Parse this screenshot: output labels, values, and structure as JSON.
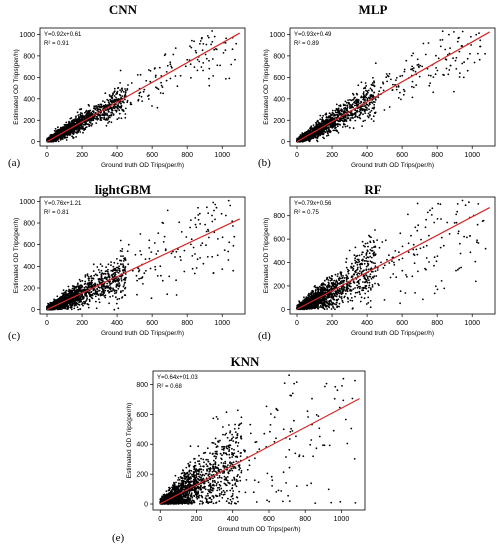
{
  "figure": {
    "panels": [
      {
        "id": "a",
        "label": "(a)",
        "title": "CNN",
        "equation": "Y=0.92x+0.61",
        "r2": "R² = 0.91",
        "xlabel": "Ground truth OD Trips(per/h)",
        "ylabel": "Estimated OD Trips(per/h)"
      },
      {
        "id": "b",
        "label": "(b)",
        "title": "MLP",
        "equation": "Y=0.93x+0.49",
        "r2": "R² = 0.89",
        "xlabel": "Ground truth OD Trips(per/h)",
        "ylabel": "Estimated OD Trips(per/h)"
      },
      {
        "id": "c",
        "label": "(c)",
        "title": "lightGBM",
        "equation": "Y=0.76x+1.21",
        "r2": "R² = 0.81",
        "xlabel": "Ground truth OD Trips(per/h)",
        "ylabel": "Estimated OD Trips(per/h)"
      },
      {
        "id": "d",
        "label": "(d)",
        "title": "RF",
        "equation": "Y=0.79x+0.56",
        "r2": "R² = 0.75",
        "xlabel": "Ground truth OD Trips(per/h)",
        "ylabel": "Estimated OD Trips(per/h)"
      },
      {
        "id": "e",
        "label": "(e)",
        "title": "KNN",
        "equation": "Y=0.64x+01.03",
        "r2": "R² = 0.68",
        "xlabel": "Ground truth OD Trips(per/h)",
        "ylabel": "Estimated OD Trips(per/h)"
      }
    ]
  },
  "chart_data": [
    {
      "type": "scatter",
      "title": "CNN",
      "xlabel": "Ground truth OD Trips(per/h)",
      "ylabel": "Estimated OD Trips(per/h)",
      "xlim": [
        -40,
        1130
      ],
      "ylim": [
        -40,
        1060
      ],
      "xticks": [
        0,
        200,
        400,
        600,
        800,
        1000
      ],
      "yticks": [
        0,
        200,
        400,
        600,
        800,
        1000
      ],
      "fit": {
        "slope": 0.92,
        "intercept": 0.61,
        "r2": 0.91,
        "color": "#d62728"
      },
      "point_color": "#000000"
    },
    {
      "type": "scatter",
      "title": "MLP",
      "xlabel": "Ground truth OD Trips(per/h)",
      "ylabel": "Estimated OD Trips(per/h)",
      "xlim": [
        -40,
        1130
      ],
      "ylim": [
        -40,
        1060
      ],
      "xticks": [
        0,
        200,
        400,
        600,
        800,
        1000
      ],
      "yticks": [
        0,
        200,
        400,
        600,
        800,
        1000
      ],
      "fit": {
        "slope": 0.93,
        "intercept": 0.49,
        "r2": 0.89,
        "color": "#d62728"
      },
      "point_color": "#000000"
    },
    {
      "type": "scatter",
      "title": "lightGBM",
      "xlabel": "Ground truth OD Trips(per/h)",
      "ylabel": "Estimated OD Trips(per/h)",
      "xlim": [
        -40,
        1130
      ],
      "ylim": [
        -40,
        1040
      ],
      "xticks": [
        0,
        200,
        400,
        600,
        800,
        1000
      ],
      "yticks": [
        0,
        200,
        400,
        600,
        800,
        1000
      ],
      "fit": {
        "slope": 0.76,
        "intercept": 1.21,
        "r2": 0.81,
        "color": "#d62728"
      },
      "point_color": "#000000"
    },
    {
      "type": "scatter",
      "title": "RF",
      "xlabel": "Ground truth OD Trips(per/h)",
      "ylabel": "Estimated OD Trips(per/h)",
      "xlim": [
        -40,
        1130
      ],
      "ylim": [
        -40,
        960
      ],
      "xticks": [
        0,
        200,
        400,
        600,
        800,
        1000
      ],
      "yticks": [
        0,
        200,
        400,
        600,
        800
      ],
      "fit": {
        "slope": 0.79,
        "intercept": 0.56,
        "r2": 0.75,
        "color": "#d62728"
      },
      "point_color": "#000000"
    },
    {
      "type": "scatter",
      "title": "KNN",
      "xlabel": "Ground truth OD Trips(per/h)",
      "ylabel": "Estimated OD Trips(per/h)",
      "xlim": [
        -40,
        1130
      ],
      "ylim": [
        -40,
        890
      ],
      "xticks": [
        0,
        200,
        400,
        600,
        800,
        1000
      ],
      "yticks": [
        0,
        200,
        400,
        600,
        800
      ],
      "fit": {
        "slope": 0.64,
        "intercept": 1.03,
        "r2": 0.68,
        "color": "#d62728"
      },
      "point_color": "#000000"
    }
  ]
}
